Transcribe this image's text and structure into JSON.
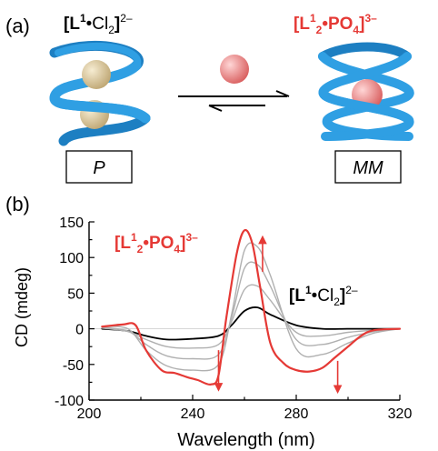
{
  "panel_a": {
    "label": "(a)",
    "left_complex": {
      "prefix": "[L",
      "sup1": "1",
      "mid": "•Cl",
      "sub": "2",
      "close": "]",
      "charge": "2–"
    },
    "right_complex": {
      "prefix": "[L",
      "sup1": "1",
      "sub1": "2",
      "mid": "•PO",
      "sub2": "4",
      "close": "]",
      "charge": "3–"
    },
    "left_box_label": "P",
    "right_box_label": "MM",
    "colors": {
      "helix": "#2f9fe3",
      "chloride": "#dcc79a",
      "phosphate": "#ef8a8a",
      "red_text": "#e53935"
    }
  },
  "panel_b": {
    "label": "(b)",
    "annotation_red": {
      "prefix": "[L",
      "sup1": "1",
      "sub1": "2",
      "mid": "•PO",
      "sub2": "4",
      "close": "]",
      "charge": "3–"
    },
    "annotation_black": {
      "prefix": "[L",
      "sup1": "1",
      "mid": "•Cl",
      "sub": "2",
      "close": "]",
      "charge": "2–"
    }
  },
  "chart_data": {
    "type": "line",
    "xlabel": "Wavelength (nm)",
    "ylabel": "CD (mdeg)",
    "xlim": [
      200,
      320
    ],
    "ylim": [
      -100,
      150
    ],
    "xticks": [
      200,
      240,
      280,
      320
    ],
    "yticks": [
      -100,
      -50,
      0,
      50,
      100,
      150
    ],
    "series": [
      {
        "color": "#000000",
        "x": [
          205,
          215,
          222,
          230,
          240,
          250,
          255,
          260,
          265,
          270,
          280,
          290,
          300,
          310,
          320
        ],
        "y": [
          0,
          -3,
          -10,
          -15,
          -14,
          -10,
          5,
          25,
          30,
          20,
          5,
          0,
          0,
          0,
          0
        ]
      },
      {
        "color": "#b0b0b0",
        "x": [
          205,
          215,
          222,
          230,
          240,
          250,
          255,
          260,
          265,
          270,
          280,
          290,
          300,
          310,
          320
        ],
        "y": [
          1,
          -4,
          -15,
          -25,
          -27,
          -22,
          10,
          55,
          60,
          40,
          -5,
          -10,
          -5,
          -2,
          0
        ]
      },
      {
        "color": "#b0b0b0",
        "x": [
          205,
          215,
          222,
          230,
          240,
          250,
          255,
          260,
          265,
          270,
          280,
          290,
          300,
          310,
          320
        ],
        "y": [
          2,
          -3,
          -22,
          -38,
          -42,
          -36,
          15,
          85,
          90,
          60,
          -15,
          -22,
          -12,
          -4,
          0
        ]
      },
      {
        "color": "#b0b0b0",
        "x": [
          205,
          215,
          222,
          230,
          240,
          250,
          255,
          260,
          265,
          270,
          280,
          290,
          300,
          310,
          320
        ],
        "y": [
          3,
          0,
          -30,
          -52,
          -58,
          -50,
          20,
          110,
          115,
          75,
          -28,
          -36,
          -20,
          -6,
          0
        ]
      },
      {
        "color": "#e53935",
        "x": [
          205,
          213,
          218,
          222,
          228,
          233,
          238,
          242,
          247,
          250,
          253,
          257,
          260,
          263,
          266,
          270,
          275,
          280,
          285,
          290,
          295,
          300,
          305,
          310,
          320
        ],
        "y": [
          3,
          6,
          5,
          -30,
          -58,
          -62,
          -68,
          -72,
          -78,
          -65,
          15,
          105,
          138,
          120,
          60,
          -20,
          -48,
          -58,
          -60,
          -55,
          -40,
          -25,
          -10,
          -2,
          0
        ]
      }
    ],
    "arrows": [
      {
        "x": 250,
        "y_from": -30,
        "y_to": -82,
        "direction": "down"
      },
      {
        "x": 267,
        "y_from": 80,
        "y_to": 125,
        "direction": "up"
      },
      {
        "x": 296,
        "y_from": -45,
        "y_to": -85,
        "direction": "down"
      }
    ]
  }
}
